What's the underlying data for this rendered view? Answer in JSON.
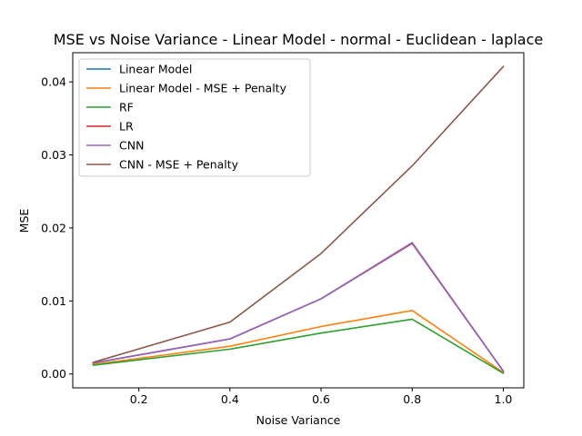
{
  "chart_data": {
    "type": "line",
    "title": "MSE vs Noise Variance - Linear Model - normal - Euclidean - laplace",
    "xlabel": "Noise Variance",
    "ylabel": "MSE",
    "xlim": [
      0.055,
      1.045
    ],
    "ylim": [
      -0.0019,
      0.044
    ],
    "xticks": [
      0.2,
      0.4,
      0.6,
      0.8,
      1.0
    ],
    "xtick_labels": [
      "0.2",
      "0.4",
      "0.6",
      "0.8",
      "1.0"
    ],
    "yticks": [
      0.0,
      0.01,
      0.02,
      0.03,
      0.04
    ],
    "ytick_labels": [
      "0.00",
      "0.01",
      "0.02",
      "0.03",
      "0.04"
    ],
    "grid": false,
    "legend_position": "upper-left",
    "x": [
      0.1,
      0.4,
      0.6,
      0.8,
      1.0
    ],
    "series": [
      {
        "name": "Linear Model",
        "color": "#1f77b4",
        "values": [
          0.0015,
          0.0048,
          0.0103,
          0.0179,
          0.0004
        ]
      },
      {
        "name": "Linear Model - MSE + Penalty",
        "color": "#ff7f0e",
        "values": [
          0.0013,
          0.0038,
          0.0065,
          0.0087,
          0.0002
        ]
      },
      {
        "name": "RF",
        "color": "#2ca02c",
        "values": [
          0.0012,
          0.0034,
          0.0056,
          0.0075,
          0.0001
        ]
      },
      {
        "name": "LR",
        "color": "#d62728",
        "values": [
          0.0015,
          0.0048,
          0.0103,
          0.0179,
          0.0004
        ]
      },
      {
        "name": "CNN",
        "color": "#9467bd",
        "values": [
          0.0015,
          0.0048,
          0.0103,
          0.018,
          0.0004
        ]
      },
      {
        "name": "CNN - MSE + Penalty",
        "color": "#8c564b",
        "values": [
          0.0016,
          0.0071,
          0.0165,
          0.0285,
          0.0421
        ]
      }
    ]
  }
}
